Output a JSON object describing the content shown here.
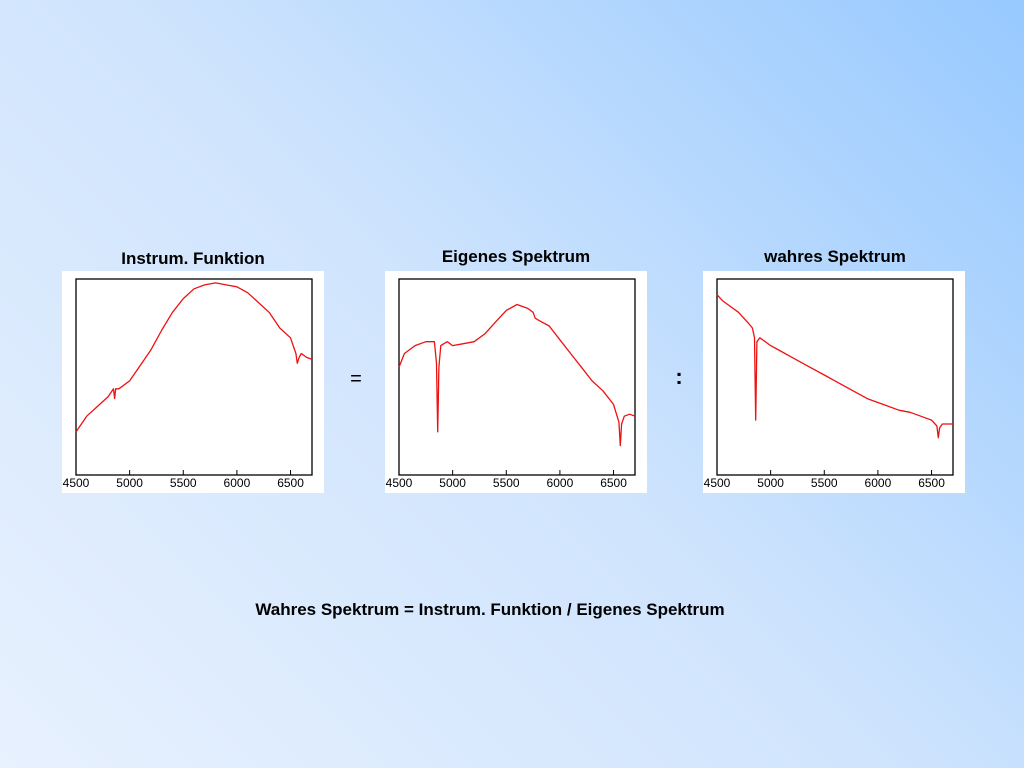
{
  "colors": {
    "line": "#ee1111",
    "frame": "#000000",
    "background": "#ffffff"
  },
  "operators": {
    "equals": "=",
    "divide": ":"
  },
  "formula": "Wahres Spektrum = Instrum. Funktion / Eigenes Spektrum",
  "chart_data": [
    {
      "type": "line",
      "title": "Instrum. Funktion",
      "xlabel": "",
      "ylabel": "",
      "xlim": [
        4500,
        6700
      ],
      "ylim": [
        0,
        100
      ],
      "xticks": [
        4500,
        5000,
        5500,
        6000,
        6500
      ],
      "xtick_labels": [
        "4500",
        "5000",
        "5500",
        "6000",
        "6500"
      ],
      "grid": false,
      "series": [
        {
          "x": [
            4500,
            4550,
            4600,
            4700,
            4800,
            4850,
            4860,
            4870,
            4900,
            5000,
            5100,
            5200,
            5300,
            5400,
            5500,
            5600,
            5700,
            5800,
            5900,
            6000,
            6100,
            6200,
            6300,
            6400,
            6500,
            6550,
            6563,
            6580,
            6600,
            6650,
            6700
          ],
          "y": [
            22,
            26,
            30,
            35,
            40,
            44,
            39,
            44,
            44,
            48,
            56,
            64,
            74,
            83,
            90,
            95,
            97,
            98,
            97,
            96,
            93,
            88,
            83,
            75,
            70,
            62,
            57,
            60,
            62,
            60,
            59
          ]
        }
      ]
    },
    {
      "type": "line",
      "title": "Eigenes Spektrum",
      "xlabel": "",
      "ylabel": "",
      "xlim": [
        4500,
        6700
      ],
      "ylim": [
        0,
        100
      ],
      "xticks": [
        4500,
        5000,
        5500,
        6000,
        6500
      ],
      "xtick_labels": [
        "4500",
        "5000",
        "5500",
        "6000",
        "6500"
      ],
      "grid": false,
      "series": [
        {
          "x": [
            4500,
            4550,
            4650,
            4750,
            4830,
            4850,
            4861,
            4872,
            4890,
            4950,
            5000,
            5100,
            5200,
            5300,
            5400,
            5500,
            5600,
            5700,
            5750,
            5770,
            5800,
            5900,
            6000,
            6100,
            6200,
            6300,
            6400,
            6500,
            6550,
            6563,
            6575,
            6600,
            6650,
            6700
          ],
          "y": [
            55,
            62,
            66,
            68,
            68,
            57,
            22,
            55,
            66,
            68,
            66,
            67,
            68,
            72,
            78,
            84,
            87,
            85,
            83,
            80,
            79,
            76,
            69,
            62,
            55,
            48,
            43,
            36,
            27,
            15,
            26,
            30,
            31,
            30
          ]
        }
      ]
    },
    {
      "type": "line",
      "title": "wahres Spektrum",
      "xlabel": "",
      "ylabel": "",
      "xlim": [
        4500,
        6700
      ],
      "ylim": [
        0,
        100
      ],
      "xticks": [
        4500,
        5000,
        5500,
        6000,
        6500
      ],
      "xtick_labels": [
        "4500",
        "5000",
        "5500",
        "6000",
        "6500"
      ],
      "grid": false,
      "series": [
        {
          "x": [
            4500,
            4550,
            4600,
            4700,
            4800,
            4830,
            4850,
            4861,
            4872,
            4900,
            5000,
            5100,
            5200,
            5300,
            5400,
            5500,
            5600,
            5700,
            5800,
            5900,
            6000,
            6100,
            6200,
            6300,
            6400,
            6450,
            6500,
            6550,
            6563,
            6575,
            6600,
            6650,
            6700
          ],
          "y": [
            92,
            89,
            87,
            83,
            77,
            75,
            70,
            28,
            68,
            70,
            66,
            63,
            60,
            57,
            54,
            51,
            48,
            45,
            42,
            39,
            37,
            35,
            33,
            32,
            30,
            29,
            28,
            25,
            19,
            24,
            26,
            26,
            26
          ]
        }
      ]
    }
  ]
}
